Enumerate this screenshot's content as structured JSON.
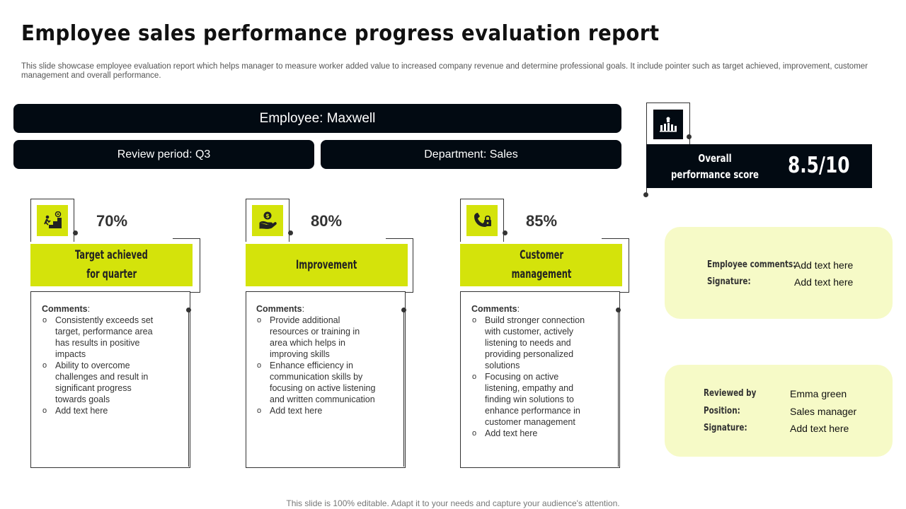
{
  "title": "Employee sales performance progress evaluation report",
  "subtitle": "This slide showcase employee evaluation report which helps manager to measure worker added value to increased company revenue and determine professional goals. It include pointer such as target achieved, improvement, customer management and overall performance.",
  "header": {
    "employee": "Employee: Maxwell",
    "review_period": "Review period: Q3",
    "department": "Department: Sales"
  },
  "score": {
    "label_line1": "Overall",
    "label_line2": "performance score",
    "value": "8.5/10",
    "icon": "trophy-team-icon"
  },
  "metrics": [
    {
      "icon": "climbing-stairs-target-icon",
      "percent": "70%",
      "label_line1": "Target achieved",
      "label_line2": "for quarter",
      "comments_heading": "Comments",
      "comments": [
        "Consistently exceeds set target, performance area has results in positive impacts",
        "Ability to overcome challenges and result in significant progress towards goals",
        "Add text here"
      ]
    },
    {
      "icon": "hand-money-icon",
      "percent": "80%",
      "label_line1": "Improvement",
      "label_line2": "",
      "comments_heading": "Comments",
      "comments": [
        "Provide additional resources or training in area which helps in improving skills",
        "Enhance efficiency in communication skills by focusing on active listening and written communication",
        "Add text here"
      ]
    },
    {
      "icon": "phone-lock-icon",
      "percent": "85%",
      "label_line1": "Customer",
      "label_line2": "management",
      "comments_heading": "Comments",
      "comments": [
        "Build stronger connection with customer, actively listening to needs and providing personalized solutions",
        "Focusing on active listening, empathy and finding win solutions to enhance performance in customer management",
        "Add text here"
      ]
    }
  ],
  "employee_panel": {
    "comments_label": "Employee comments:",
    "comments_value": "Add text here",
    "signature_label": "Signature:",
    "signature_value": "Add text here"
  },
  "review_panel": {
    "reviewed_label": "Reviewed by",
    "reviewed_value": "Emma green",
    "position_label": "Position:",
    "position_value": "Sales manager",
    "signature_label": "Signature:",
    "signature_value": "Add text here"
  },
  "footer": "This slide is 100% editable. Adapt it to your needs and capture your audience's attention.",
  "colors": {
    "accent": "#d4e30b",
    "dark": "#020a12",
    "panel": "#f6fac7"
  }
}
